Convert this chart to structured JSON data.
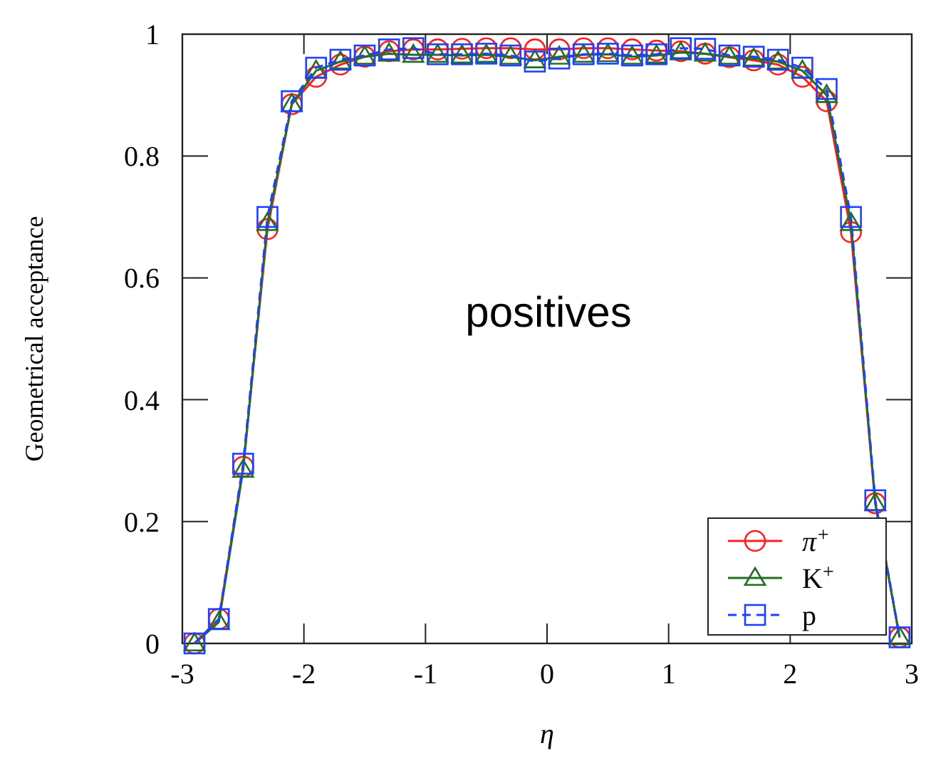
{
  "chart_data": {
    "type": "line",
    "xlabel": "η",
    "ylabel": "Geometrical acceptance",
    "annotations": [
      "positives"
    ],
    "x": [
      -2.9,
      -2.7,
      -2.5,
      -2.3,
      -2.1,
      -1.9,
      -1.7,
      -1.5,
      -1.3,
      -1.1,
      -0.9,
      -0.7,
      -0.5,
      -0.3,
      -0.1,
      0.1,
      0.3,
      0.5,
      0.7,
      0.9,
      1.1,
      1.3,
      1.5,
      1.7,
      1.9,
      2.1,
      2.3,
      2.5,
      2.7,
      2.9
    ],
    "series": [
      {
        "name": "π$^{+}$",
        "color": "#ff2020",
        "marker": "circle",
        "line_style": "solid",
        "values": [
          0.0,
          0.04,
          0.29,
          0.68,
          0.885,
          0.93,
          0.95,
          0.963,
          0.972,
          0.975,
          0.975,
          0.976,
          0.977,
          0.977,
          0.975,
          0.975,
          0.977,
          0.977,
          0.975,
          0.973,
          0.972,
          0.968,
          0.962,
          0.957,
          0.95,
          0.93,
          0.89,
          0.675,
          0.23,
          0.01
        ]
      },
      {
        "name": "K$^{+}$",
        "color": "#207020",
        "marker": "triangle",
        "line_style": "solid",
        "values": [
          0.0,
          0.035,
          0.285,
          0.69,
          0.885,
          0.94,
          0.955,
          0.963,
          0.968,
          0.966,
          0.966,
          0.965,
          0.966,
          0.963,
          0.957,
          0.963,
          0.966,
          0.967,
          0.963,
          0.965,
          0.97,
          0.968,
          0.963,
          0.96,
          0.955,
          0.94,
          0.9,
          0.69,
          0.23,
          0.01
        ]
      },
      {
        "name": "p",
        "color": "#2040ff",
        "marker": "square",
        "line_style": "dashed",
        "values": [
          0.0,
          0.04,
          0.295,
          0.7,
          0.89,
          0.945,
          0.958,
          0.965,
          0.975,
          0.977,
          0.967,
          0.967,
          0.968,
          0.965,
          0.955,
          0.96,
          0.967,
          0.968,
          0.965,
          0.967,
          0.977,
          0.976,
          0.965,
          0.963,
          0.958,
          0.945,
          0.91,
          0.7,
          0.235,
          0.01
        ]
      }
    ],
    "xlim": [
      -3,
      3
    ],
    "ylim": [
      0,
      1
    ],
    "xticks": [
      -3,
      -2,
      -1,
      0,
      1,
      2,
      3
    ],
    "yticks": [
      0,
      0.2,
      0.4,
      0.6,
      0.8,
      1
    ],
    "legend": "bottom right",
    "grid": false
  }
}
